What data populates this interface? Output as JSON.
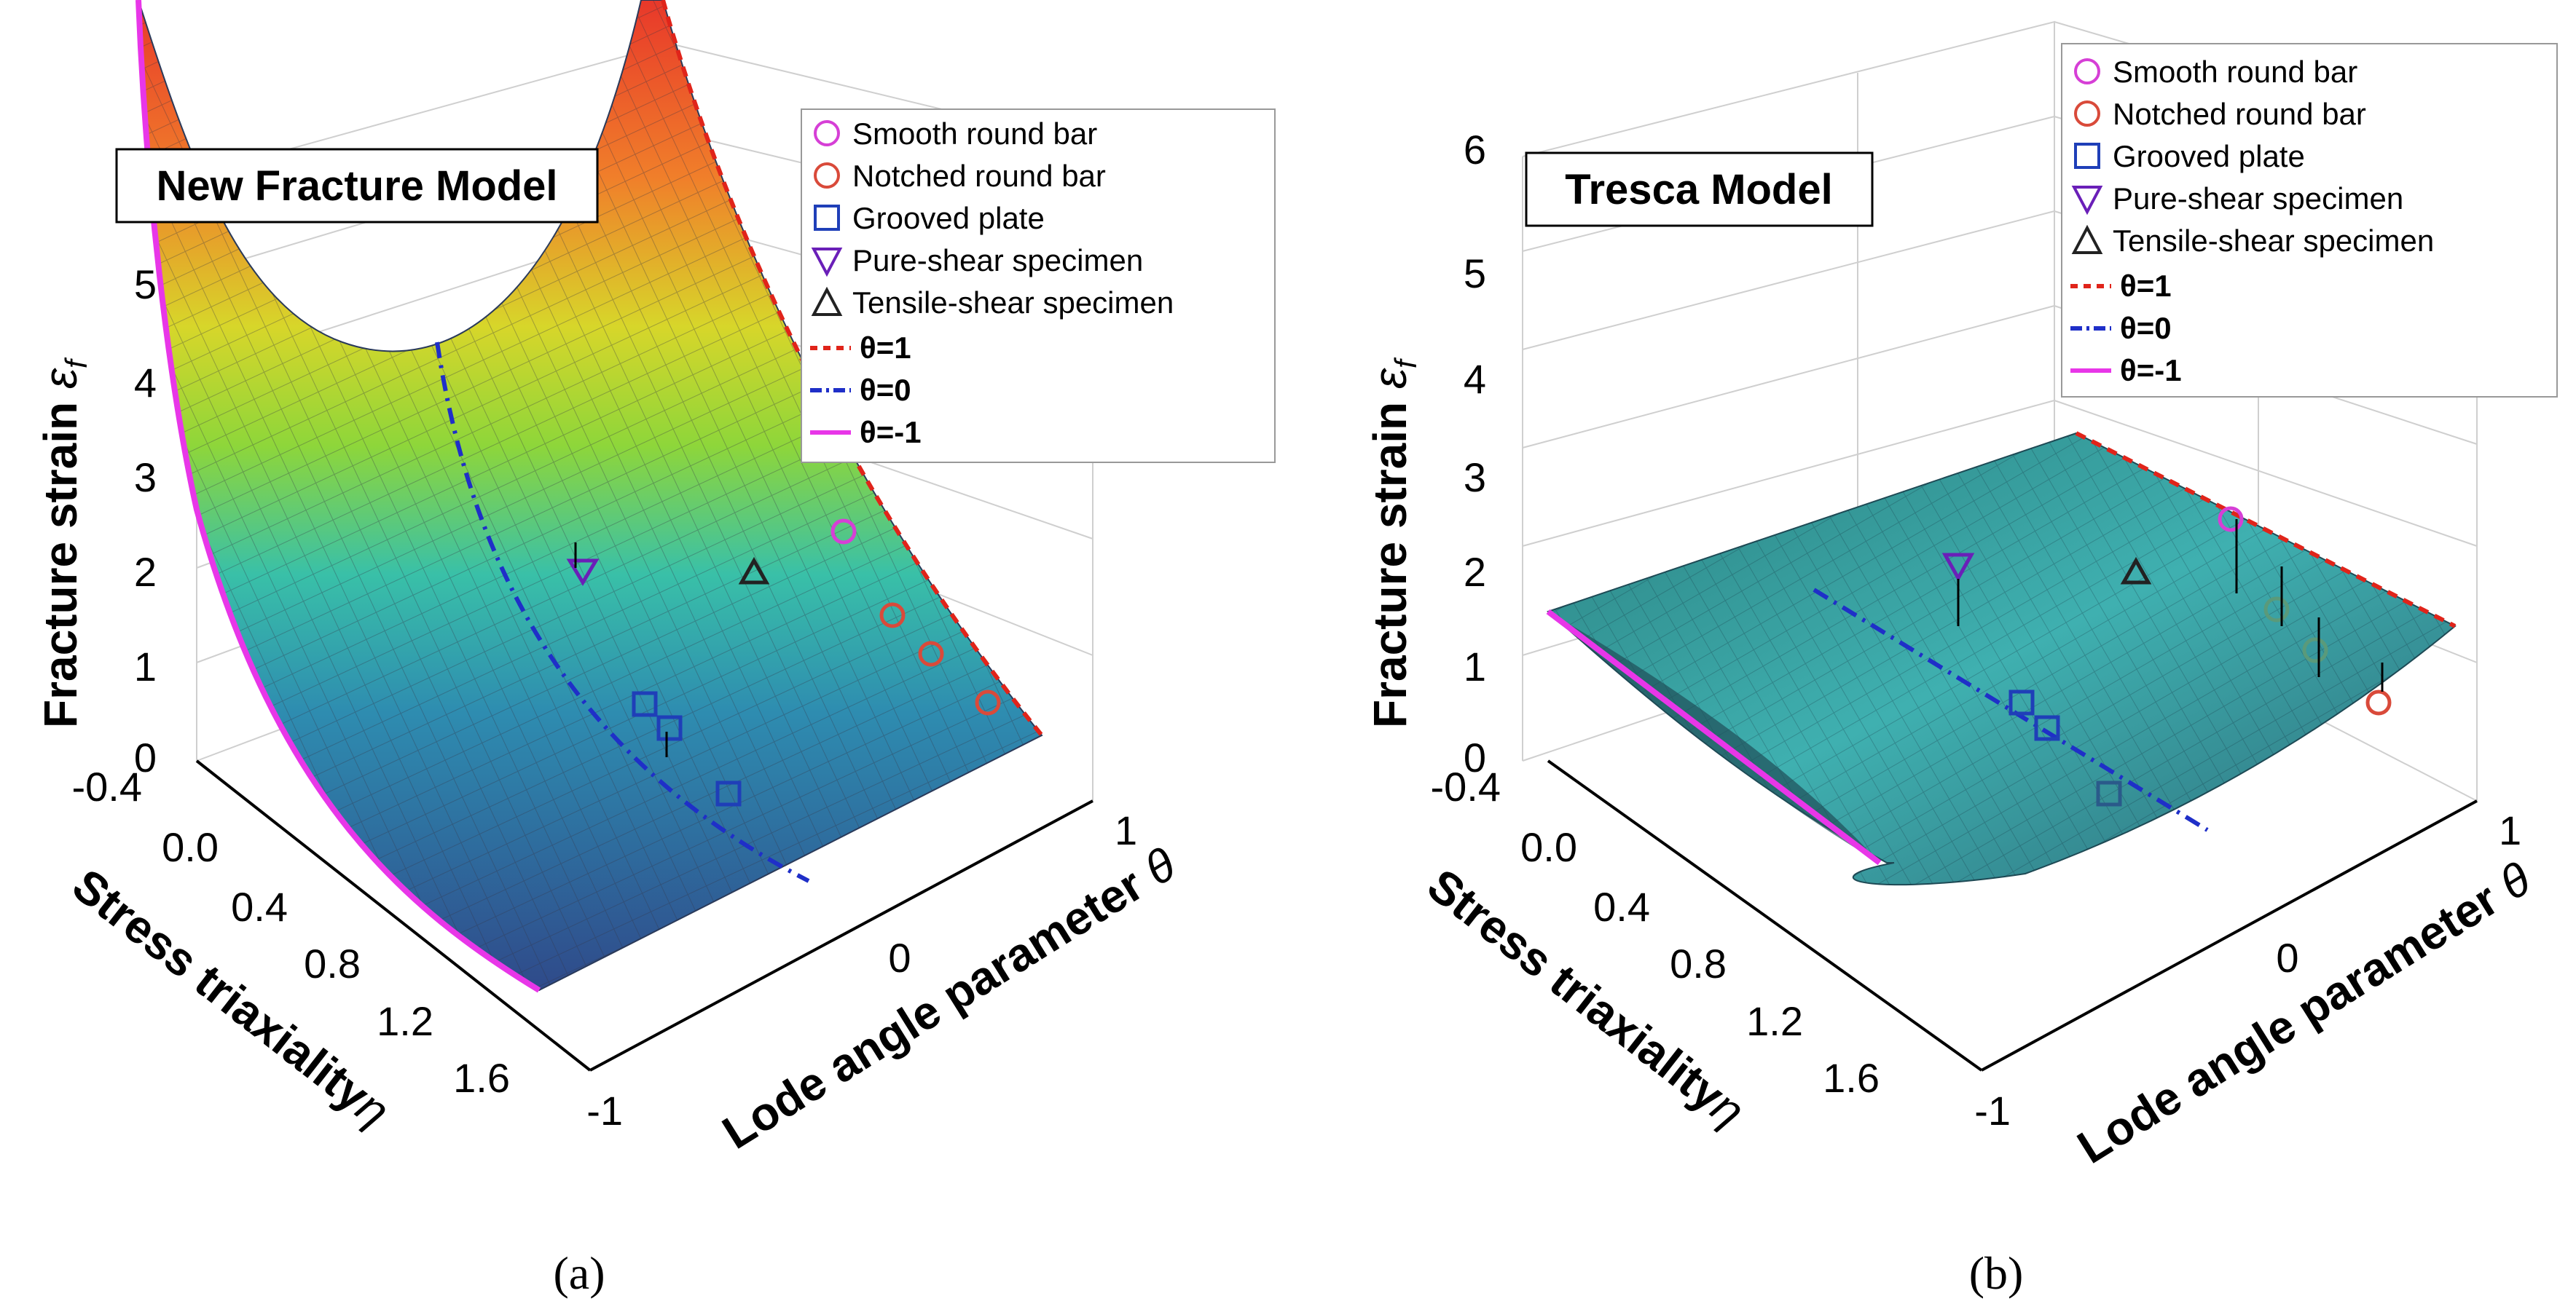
{
  "figure": {
    "panels": [
      {
        "id": "a",
        "label": "(a)",
        "model_title": "New Fracture Model"
      },
      {
        "id": "b",
        "label": "(b)",
        "model_title": "Tresca Model"
      }
    ]
  },
  "axes": {
    "z_label": "Fracture strain",
    "z_symbol": "ε",
    "z_sub": "f",
    "x_label": "Stress triaxiality",
    "x_symbol": "η",
    "y_label": "Lode angle parameter",
    "y_symbol": "θ",
    "z_ticks": [
      "0",
      "1",
      "2",
      "3",
      "4",
      "5",
      "6"
    ],
    "x_ticks": [
      "-0.4",
      "0.0",
      "0.4",
      "0.8",
      "1.2",
      "1.6"
    ],
    "y_ticks": [
      "-1",
      "0",
      "1"
    ]
  },
  "legend": {
    "entries": [
      {
        "label": "Smooth round bar",
        "marker": "circle",
        "color": "#d63fd6"
      },
      {
        "label": "Notched round bar",
        "marker": "circle",
        "color": "#d94a3a"
      },
      {
        "label": "Grooved plate",
        "marker": "square",
        "color": "#1f3fb8"
      },
      {
        "label": "Pure-shear specimen",
        "marker": "triangle-down",
        "color": "#6a1fb8"
      },
      {
        "label": "Tensile-shear specimen",
        "marker": "triangle-up",
        "color": "#222222"
      },
      {
        "label": "θ=1",
        "line": "dash",
        "color": "#e0241a"
      },
      {
        "label": "θ=0",
        "line": "dashdot",
        "color": "#1f2fc8"
      },
      {
        "label": "θ=-1",
        "line": "solid",
        "color": "#e836e8"
      }
    ]
  },
  "colors": {
    "surface_a_top": "#e8382a",
    "surface_a_mid": "#b8e02a",
    "surface_a_low": "#2fa3b8",
    "surface_a_base": "#2f4f8f",
    "surface_b": "#3fb0b0",
    "theta_pos1": "#e0241a",
    "theta_zero": "#1f2fc8",
    "theta_neg1": "#e836e8"
  },
  "chart_data": [
    {
      "type": "surface",
      "title": "New Fracture Model",
      "xlabel": "Stress triaxiality η",
      "ylabel": "Lode angle parameter θ",
      "zlabel": "Fracture strain ε_f",
      "xlim": [
        -0.4,
        1.8
      ],
      "ylim": [
        -1,
        1
      ],
      "zlim": [
        0,
        6
      ],
      "points": {
        "smooth_round_bar": [
          {
            "eta": 0.33,
            "theta": 1,
            "eps": 2.5
          }
        ],
        "notched_round_bar": [
          {
            "eta": 0.5,
            "theta": 1,
            "eps": 1.6
          },
          {
            "eta": 0.7,
            "theta": 1,
            "eps": 1.2
          },
          {
            "eta": 1.0,
            "theta": 1,
            "eps": 0.8
          }
        ],
        "grooved_plate": [
          {
            "eta": 0.58,
            "theta": 0,
            "eps": 0.9
          },
          {
            "eta": 0.65,
            "theta": 0,
            "eps": 0.8
          },
          {
            "eta": 0.95,
            "theta": 0,
            "eps": 0.5
          }
        ],
        "pure_shear": [
          {
            "eta": 0.0,
            "theta": 0,
            "eps": 2.0
          }
        ],
        "tensile_shear": [
          {
            "eta": 0.15,
            "theta": 0.5,
            "eps": 2.0
          }
        ]
      }
    },
    {
      "type": "surface",
      "title": "Tresca Model",
      "xlabel": "Stress triaxiality η",
      "ylabel": "Lode angle parameter θ",
      "zlabel": "Fracture strain ε_f",
      "xlim": [
        -0.4,
        1.8
      ],
      "ylim": [
        -1,
        1
      ],
      "zlim": [
        0,
        6
      ],
      "points": {
        "smooth_round_bar": [
          {
            "eta": 0.33,
            "theta": 1,
            "eps": 2.5
          }
        ],
        "notched_round_bar": [
          {
            "eta": 0.5,
            "theta": 1,
            "eps": 1.6
          },
          {
            "eta": 0.7,
            "theta": 1,
            "eps": 1.2
          },
          {
            "eta": 1.0,
            "theta": 1,
            "eps": 0.8
          }
        ],
        "grooved_plate": [
          {
            "eta": 0.58,
            "theta": 0,
            "eps": 0.9
          },
          {
            "eta": 0.65,
            "theta": 0,
            "eps": 0.8
          },
          {
            "eta": 0.95,
            "theta": 0,
            "eps": 0.5
          }
        ],
        "pure_shear": [
          {
            "eta": 0.0,
            "theta": 0,
            "eps": 2.0
          }
        ],
        "tensile_shear": [
          {
            "eta": 0.15,
            "theta": 0.5,
            "eps": 2.0
          }
        ]
      }
    }
  ]
}
